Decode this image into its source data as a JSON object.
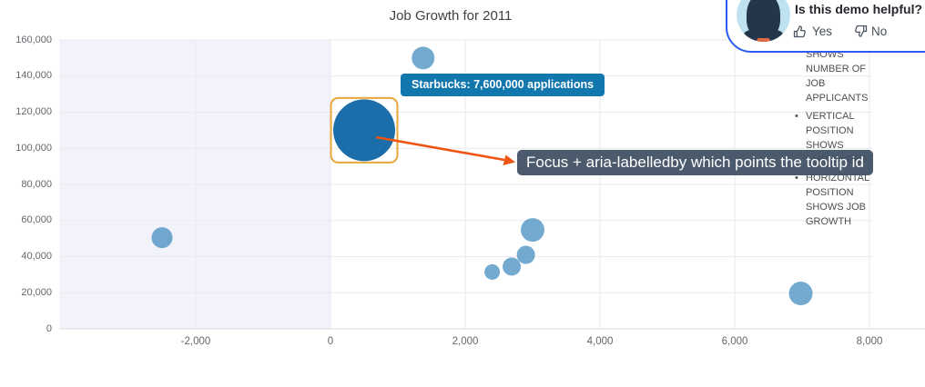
{
  "title": "Job Growth for 2011",
  "tooltip": {
    "text": "Starbucks: 7,600,000 applications",
    "bg": "#1177ad"
  },
  "annotation": {
    "text": "Focus + aria-labelledby which points the tooltip id",
    "bg": "#3e4e61"
  },
  "notes": {
    "items": [
      {
        "bullet": false,
        "text": "SHOWS NUMBER OF JOB APPLICANTS"
      },
      {
        "bullet": true,
        "text": "VERTICAL POSITION SHOWS EMPLOYEES"
      },
      {
        "bullet": true,
        "text": "HORIZONTAL POSITION SHOWS JOB GROWTH"
      }
    ]
  },
  "feedback": {
    "question": "Is this demo helpful?",
    "yes_label": "Yes",
    "no_label": "No",
    "border_color": "#2a5cf2"
  },
  "colors": {
    "bubble": "#3f89bd",
    "bubble_selected": "#1b6ea9",
    "focus_ring": "#e9a63a",
    "arrow": "#ef5411",
    "grid": "#e9e9ee",
    "axis_line": "#d9d9df",
    "negative_band": "#f2f2fb",
    "tooltip_bg": "#1177ad",
    "annotation_bg": "#3e4e61"
  },
  "chart_data": {
    "type": "scatter",
    "subtype": "bubble",
    "title": "Job Growth for 2011",
    "xlabel": "",
    "ylabel": "",
    "xlim": [
      -4020,
      8040
    ],
    "ylim": [
      0,
      160000
    ],
    "grid": true,
    "x_ticks": [
      -2000,
      0,
      2000,
      4000,
      6000,
      8000
    ],
    "x_tick_labels": [
      "-2,000",
      "0",
      "2,000",
      "4,000",
      "6,000",
      "8,000"
    ],
    "y_ticks": [
      0,
      20000,
      40000,
      60000,
      80000,
      100000,
      120000,
      140000,
      160000
    ],
    "y_tick_labels": [
      "0",
      "20,000",
      "40,000",
      "60,000",
      "80,000",
      "100,000",
      "120,000",
      "140,000",
      "160,000"
    ],
    "points": [
      {
        "x": -2500,
        "y": 50500,
        "r": 11.5
      },
      {
        "x": 500,
        "y": 110000,
        "r": 34,
        "selected": true,
        "label": "Starbucks",
        "size": 7600000
      },
      {
        "x": 1375,
        "y": 150000,
        "r": 12.5
      },
      {
        "x": 2400,
        "y": 31500,
        "r": 8.5
      },
      {
        "x": 2690,
        "y": 34500,
        "r": 10
      },
      {
        "x": 2900,
        "y": 41000,
        "r": 10
      },
      {
        "x": 3000,
        "y": 54800,
        "r": 13
      },
      {
        "x": 6980,
        "y": 19600,
        "r": 13
      }
    ],
    "legend": false
  }
}
